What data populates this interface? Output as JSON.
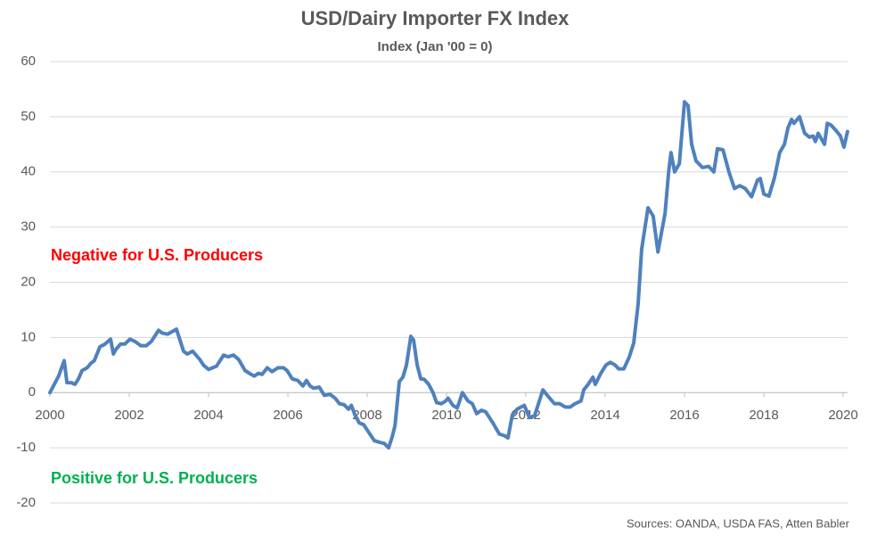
{
  "chart_data": {
    "type": "line",
    "title": "USD/Dairy Importer FX Index",
    "subtitle": "Index (Jan '00 = 0)",
    "annotations": [
      {
        "text": "Negative for U.S. Producers",
        "color": "#ff0000"
      },
      {
        "text": "Positive for U.S. Producers",
        "color": "#00b050"
      }
    ],
    "source": "Sources: OANDA, USDA FAS, Atten Babler",
    "grid": true,
    "xlim": [
      2000,
      2020.11
    ],
    "ylim": [
      -20,
      60
    ],
    "xticks": [
      2000,
      2002,
      2004,
      2006,
      2008,
      2010,
      2012,
      2014,
      2016,
      2018,
      2020
    ],
    "yticks": [
      -20,
      -10,
      0,
      10,
      20,
      30,
      40,
      50,
      60
    ],
    "x": [
      2000,
      2000.22,
      2000.36,
      2000.43,
      2000.54,
      2000.63,
      2000.72,
      2000.81,
      2000.94,
      2001.03,
      2001.12,
      2001.26,
      2001.39,
      2001.53,
      2001.6,
      2001.66,
      2001.78,
      2001.89,
      2002.02,
      2002.16,
      2002.29,
      2002.43,
      2002.56,
      2002.74,
      2002.83,
      2002.97,
      2003.19,
      2003.37,
      2003.46,
      2003.6,
      2003.78,
      2003.87,
      2004.0,
      2004.2,
      2004.38,
      2004.49,
      2004.63,
      2004.76,
      2004.92,
      2005.03,
      2005.15,
      2005.26,
      2005.35,
      2005.48,
      2005.6,
      2005.75,
      2005.89,
      2005.98,
      2006.11,
      2006.25,
      2006.38,
      2006.47,
      2006.56,
      2006.65,
      2006.79,
      2006.92,
      2007.06,
      2007.19,
      2007.3,
      2007.42,
      2007.53,
      2007.6,
      2007.69,
      2007.8,
      2007.91,
      2008.04,
      2008.18,
      2008.31,
      2008.43,
      2008.54,
      2008.63,
      2008.7,
      2008.81,
      2008.9,
      2008.99,
      2009.1,
      2009.17,
      2009.26,
      2009.35,
      2009.44,
      2009.55,
      2009.66,
      2009.75,
      2009.87,
      2009.98,
      2010.04,
      2010.16,
      2010.27,
      2010.4,
      2010.54,
      2010.65,
      2010.76,
      2010.88,
      2010.99,
      2011.17,
      2011.33,
      2011.46,
      2011.55,
      2011.66,
      2011.78,
      2011.96,
      2012.09,
      2012.22,
      2012.43,
      2012.54,
      2012.72,
      2012.85,
      2012.99,
      2013.12,
      2013.24,
      2013.39,
      2013.46,
      2013.57,
      2013.69,
      2013.75,
      2013.89,
      2014.02,
      2014.13,
      2014.25,
      2014.34,
      2014.47,
      2014.61,
      2014.72,
      2014.83,
      2014.92,
      2015.08,
      2015.21,
      2015.33,
      2015.42,
      2015.51,
      2015.6,
      2015.66,
      2015.75,
      2015.87,
      2016.0,
      2016.09,
      2016.18,
      2016.29,
      2016.45,
      2016.61,
      2016.74,
      2016.83,
      2016.97,
      2017.12,
      2017.26,
      2017.39,
      2017.53,
      2017.69,
      2017.84,
      2017.91,
      2018.0,
      2018.13,
      2018.27,
      2018.4,
      2018.52,
      2018.61,
      2018.7,
      2018.76,
      2018.9,
      2019.03,
      2019.15,
      2019.24,
      2019.3,
      2019.37,
      2019.53,
      2019.6,
      2019.69,
      2019.82,
      2019.93,
      2020.02,
      2020.11
    ],
    "series": [
      {
        "name": "USD/Dairy Importer FX Index",
        "color": "#4f81bd",
        "values": [
          0,
          3,
          5.8,
          1.8,
          1.8,
          1.5,
          2.5,
          4,
          4.5,
          5.3,
          5.8,
          8.3,
          8.8,
          9.7,
          7,
          7.8,
          8.8,
          8.8,
          9.7,
          9.2,
          8.5,
          8.5,
          9.3,
          11.3,
          10.8,
          10.6,
          11.5,
          7.5,
          7,
          7.5,
          6,
          5,
          4.2,
          4.8,
          6.8,
          6.5,
          6.8,
          6,
          4,
          3.5,
          3,
          3.5,
          3.3,
          4.5,
          3.8,
          4.5,
          4.5,
          4,
          2.5,
          2.2,
          1.2,
          2.2,
          1.2,
          0.8,
          1,
          -0.5,
          -0.3,
          -1,
          -2,
          -2.2,
          -3,
          -2.3,
          -4,
          -5.5,
          -5.8,
          -7.2,
          -8.7,
          -9,
          -9.2,
          -10,
          -8,
          -6,
          2,
          2.8,
          5,
          10.2,
          9.5,
          5,
          2.5,
          2.4,
          1.5,
          0,
          -1.8,
          -2,
          -1.5,
          -1,
          -2.3,
          -2.8,
          0,
          -1.5,
          -2,
          -3.8,
          -3.2,
          -3.5,
          -5.5,
          -7.5,
          -7.8,
          -8.2,
          -4,
          -3,
          -2.3,
          -4.5,
          -4.2,
          0.5,
          -0.5,
          -2,
          -2,
          -2.6,
          -2.6,
          -2,
          -1.5,
          0.5,
          1.5,
          2.8,
          1.5,
          3.5,
          5,
          5.5,
          5,
          4.3,
          4.3,
          6.5,
          9,
          16,
          26,
          33.5,
          32,
          25.5,
          29,
          32.5,
          40,
          43.5,
          40,
          41.5,
          52.7,
          52,
          45,
          42,
          40.8,
          41,
          40,
          44.2,
          44,
          40,
          37,
          37.5,
          37,
          35.5,
          38.5,
          38.8,
          36,
          35.6,
          39,
          43.5,
          45,
          48,
          49.5,
          48.8,
          50,
          47,
          46.3,
          46.5,
          45.5,
          47,
          45,
          48.8,
          48.5,
          47.5,
          46.5,
          44.5,
          47.3
        ]
      }
    ]
  }
}
